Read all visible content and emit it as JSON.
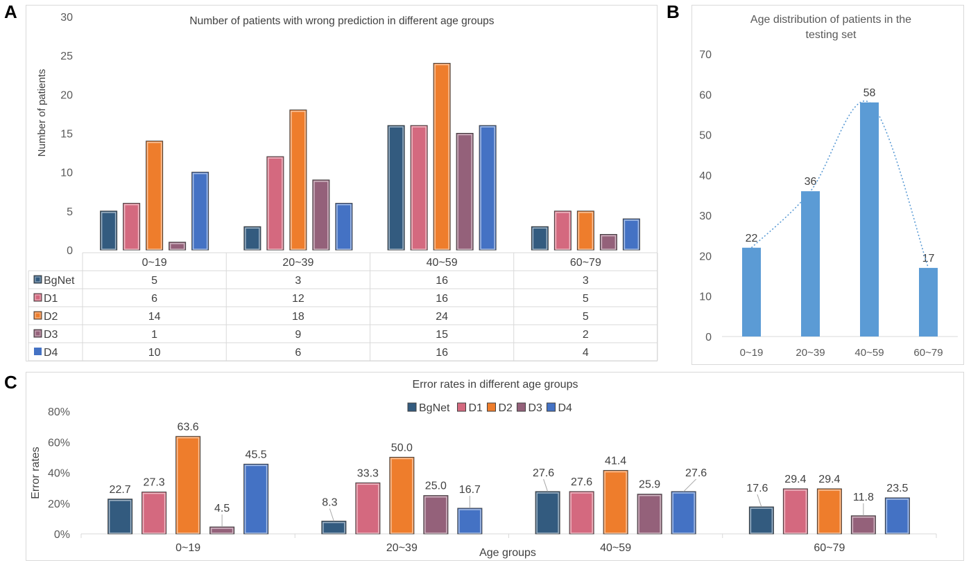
{
  "panel_labels": {
    "a": "A",
    "b": "B",
    "c": "C"
  },
  "colors": {
    "BgNet": "#335b7f",
    "D1": "#d4697f",
    "D2": "#ee7d2c",
    "D3": "#94617a",
    "D4": "#4472c4",
    "age_bar": "#5b9bd5",
    "axis_text": "#595959",
    "grid": "#d9d9d9"
  },
  "chart_data": [
    {
      "id": "A",
      "type": "bar",
      "title": "Number of patients with wrong prediction in different age groups",
      "ylabel": "Number of patients",
      "xlabel": "",
      "ylim": [
        0,
        30
      ],
      "yticks": [
        "0",
        "5",
        "10",
        "15",
        "20",
        "25",
        "30"
      ],
      "categories": [
        "0~19",
        "20~39",
        "40~59",
        "60~79"
      ],
      "series": [
        {
          "name": "BgNet",
          "values": [
            5,
            3,
            16,
            3
          ]
        },
        {
          "name": "D1",
          "values": [
            6,
            12,
            16,
            5
          ]
        },
        {
          "name": "D2",
          "values": [
            14,
            18,
            24,
            5
          ]
        },
        {
          "name": "D3",
          "values": [
            1,
            9,
            15,
            2
          ]
        },
        {
          "name": "D4",
          "values": [
            10,
            6,
            16,
            4
          ]
        }
      ],
      "data_table": true
    },
    {
      "id": "B",
      "type": "bar",
      "title": "Age distribution of patients in the testing set",
      "ylim": [
        0,
        70
      ],
      "yticks": [
        "0",
        "10",
        "20",
        "30",
        "40",
        "50",
        "60",
        "70"
      ],
      "categories": [
        "0~19",
        "20~39",
        "40~59",
        "60~79"
      ],
      "values": [
        22,
        36,
        58,
        17
      ],
      "trendline": "dotted"
    },
    {
      "id": "C",
      "type": "bar",
      "title": "Error rates in different age groups",
      "ylabel": "Error rates",
      "xlabel": "Age groups",
      "ylim": [
        0,
        80
      ],
      "yticks": [
        "0%",
        "20%",
        "40%",
        "60%",
        "80%"
      ],
      "legend": "top-center",
      "categories": [
        "0~19",
        "20~39",
        "40~59",
        "60~79"
      ],
      "series": [
        {
          "name": "BgNet",
          "values": [
            22.7,
            8.3,
            27.6,
            17.6
          ],
          "labels": [
            "22.7",
            "8.3",
            "27.6",
            "17.6"
          ]
        },
        {
          "name": "D1",
          "values": [
            27.3,
            33.3,
            27.6,
            29.4
          ],
          "labels": [
            "27.3",
            "33.3",
            "27.6",
            "29.4"
          ]
        },
        {
          "name": "D2",
          "values": [
            63.6,
            50.0,
            41.4,
            29.4
          ],
          "labels": [
            "63.6",
            "50.0",
            "41.4",
            "29.4"
          ]
        },
        {
          "name": "D3",
          "values": [
            4.5,
            25.0,
            25.9,
            11.8
          ],
          "labels": [
            "4.5",
            "25.0",
            "25.9",
            "11.8"
          ]
        },
        {
          "name": "D4",
          "values": [
            45.5,
            16.7,
            27.6,
            23.5
          ],
          "labels": [
            "45.5",
            "16.7",
            "27.6",
            "23.5"
          ]
        }
      ]
    }
  ]
}
